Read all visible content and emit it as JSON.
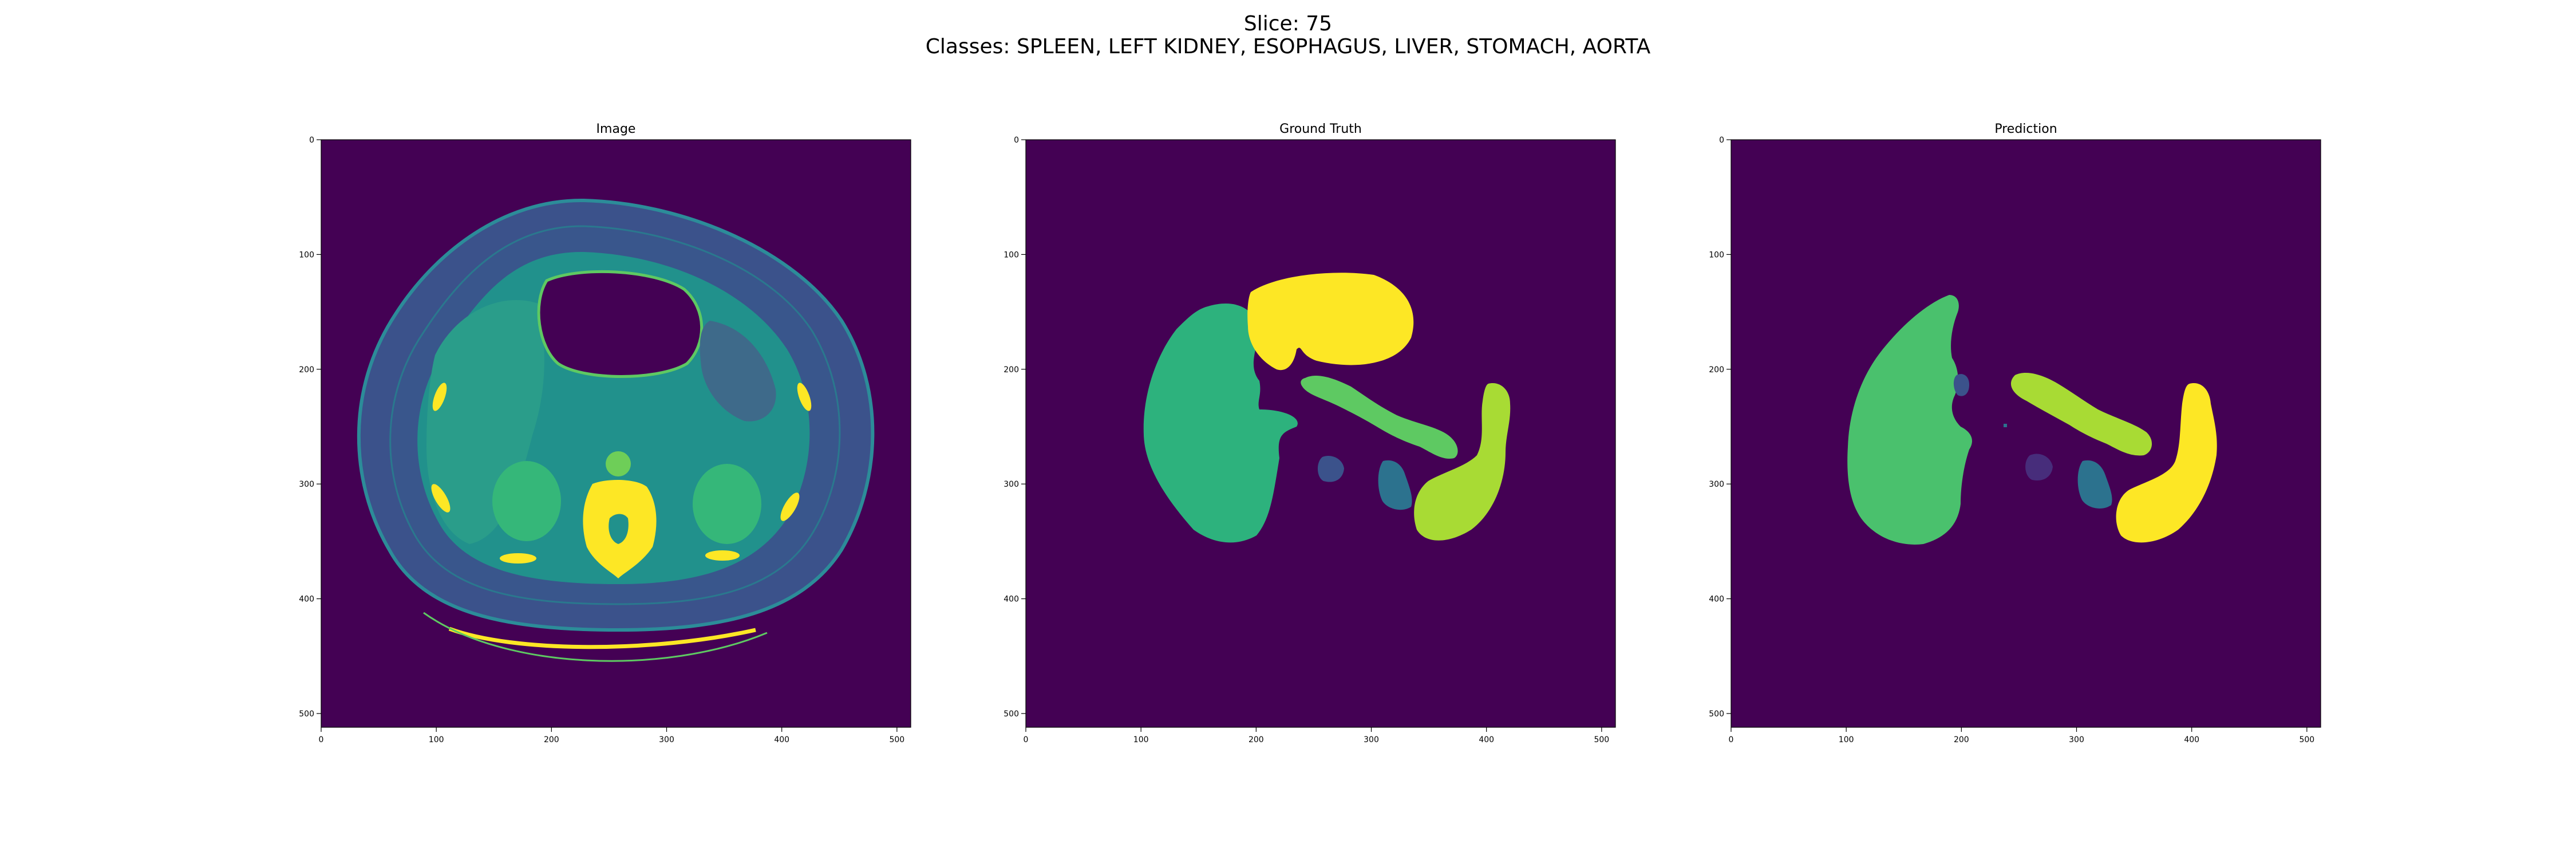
{
  "figure": {
    "title_line1": "Slice: 75",
    "title_line2": "Classes: SPLEEN, LEFT KIDNEY, ESOPHAGUS, LIVER, STOMACH, AORTA"
  },
  "panels": [
    {
      "title": "Image"
    },
    {
      "title": "Ground Truth"
    },
    {
      "title": "Prediction"
    }
  ],
  "axes": {
    "x_ticks": [
      "0",
      "100",
      "200",
      "300",
      "400",
      "500"
    ],
    "y_ticks": [
      "0",
      "100",
      "200",
      "300",
      "400",
      "500"
    ],
    "extent": [
      0,
      512
    ]
  },
  "colors": {
    "background": "#440154",
    "class_a": "#fde725",
    "class_b": "#2db27d",
    "class_c": "#5ec962",
    "class_d": "#a8db34",
    "class_e": "#2c728e",
    "class_f": "#472d7b",
    "ct_tissue": "#21918c",
    "ct_fat": "#3b528b",
    "ct_bone": "#fde725"
  }
}
